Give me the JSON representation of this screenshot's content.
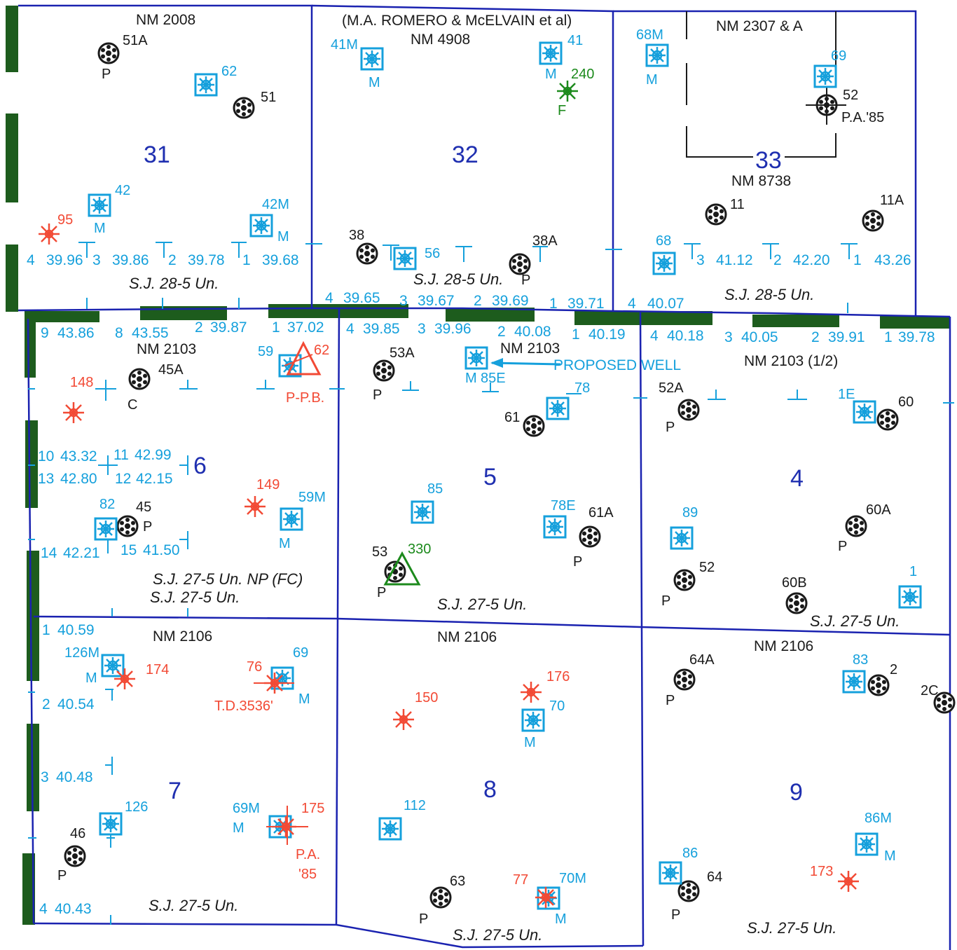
{
  "colors": {
    "boundary": "#1a22b0",
    "dark_green": "#1d5c1d",
    "cyan": "#15a0dc",
    "black": "#1a1a1a",
    "red": "#f24a35",
    "green": "#1c8a1c",
    "section_number": "#1f2fb0"
  },
  "sections": [
    {
      "id": "s31",
      "number": "31",
      "lease": "NM 2008",
      "unit": "S.J. 28-5 Un.",
      "lots": [
        "4",
        "39.96",
        "3",
        "39.86",
        "2",
        "39.78",
        "1",
        "39.68"
      ]
    },
    {
      "id": "s32",
      "number": "32",
      "lease_note": "(M.A. ROMERO & McELVAIN et al)",
      "lease": "NM 4908",
      "unit": "S.J. 28-5 Un.",
      "lots": [
        "4",
        "39.65",
        "3",
        "39.67",
        "2",
        "39.69",
        "1",
        "39.71"
      ]
    },
    {
      "id": "s33",
      "number": "33",
      "lease": "NM 2307 & A",
      "lease2": "NM 8738",
      "unit": "S.J. 28-5 Un.",
      "lots": [
        "3",
        "41.12",
        "2",
        "42.20",
        "1",
        "43.26",
        "4",
        "40.07"
      ]
    },
    {
      "id": "s6",
      "number": "6",
      "lease": "NM 2103",
      "unit": "S.J. 27-5 Un. NP (FC)",
      "unit2": "S.J. 27-5 Un.",
      "lots": [
        "9",
        "43.86",
        "8",
        "43.55",
        "2",
        "39.87",
        "1",
        "37.02",
        "10",
        "43.32",
        "11",
        "42.99",
        "13",
        "42.80",
        "12",
        "42.15",
        "14",
        "42.21",
        "15",
        "41.50"
      ]
    },
    {
      "id": "s5",
      "number": "5",
      "lease": "NM 2103",
      "unit": "S.J. 27-5 Un.",
      "lots": [
        "4",
        "39.85",
        "3",
        "39.96",
        "2",
        "40.08",
        "1",
        "40.19"
      ]
    },
    {
      "id": "s4",
      "number": "4",
      "lease": "NM 2103 (1/2)",
      "unit": "S.J. 27-5 Un.",
      "lots": [
        "4",
        "40.18",
        "3",
        "40.05",
        "2",
        "39.91",
        "1",
        "39.78"
      ]
    },
    {
      "id": "s7",
      "number": "7",
      "lease": "NM 2106",
      "unit": "S.J. 27-5 Un.",
      "lots": [
        "1",
        "40.59",
        "2",
        "40.54",
        "3",
        "40.48",
        "4",
        "40.43"
      ]
    },
    {
      "id": "s8",
      "number": "8",
      "lease": "NM 2106",
      "unit": "S.J. 27-5 Un."
    },
    {
      "id": "s9",
      "number": "9",
      "lease": "NM 2106",
      "unit": "S.J. 27-5 Un."
    }
  ],
  "annotations": {
    "proposed_well": "PROPOSED WELL",
    "pa85_33": "P.A.'85",
    "td": "T.D.3536'",
    "ppb": "P-P.B.",
    "pa_7": "P.A.",
    "pa_7b": "'85"
  },
  "wells": {
    "black": [
      "51A",
      "51",
      "38",
      "38A",
      "52",
      "11",
      "11A",
      "45A",
      "53A",
      "61",
      "52A",
      "60",
      "45",
      "61A",
      "60A",
      "52",
      "60B",
      "53",
      "46",
      "63",
      "64",
      "64A",
      "2",
      "2C"
    ],
    "cyan": [
      "62",
      "42",
      "42M",
      "41M",
      "41",
      "56",
      "68M",
      "69",
      "68",
      "59",
      "85E",
      "78",
      "1E",
      "82",
      "59M",
      "85",
      "78E",
      "89",
      "1",
      "126M",
      "69",
      "126",
      "69M",
      "112",
      "70",
      "70M",
      "83",
      "86M",
      "86"
    ],
    "red": [
      "95",
      "148",
      "149",
      "62",
      "174",
      "76",
      "175",
      "150",
      "176",
      "77",
      "173"
    ],
    "green": [
      "240",
      "330"
    ]
  },
  "status_letters": {
    "P": "P",
    "M": "M",
    "C": "C",
    "F": "F"
  }
}
